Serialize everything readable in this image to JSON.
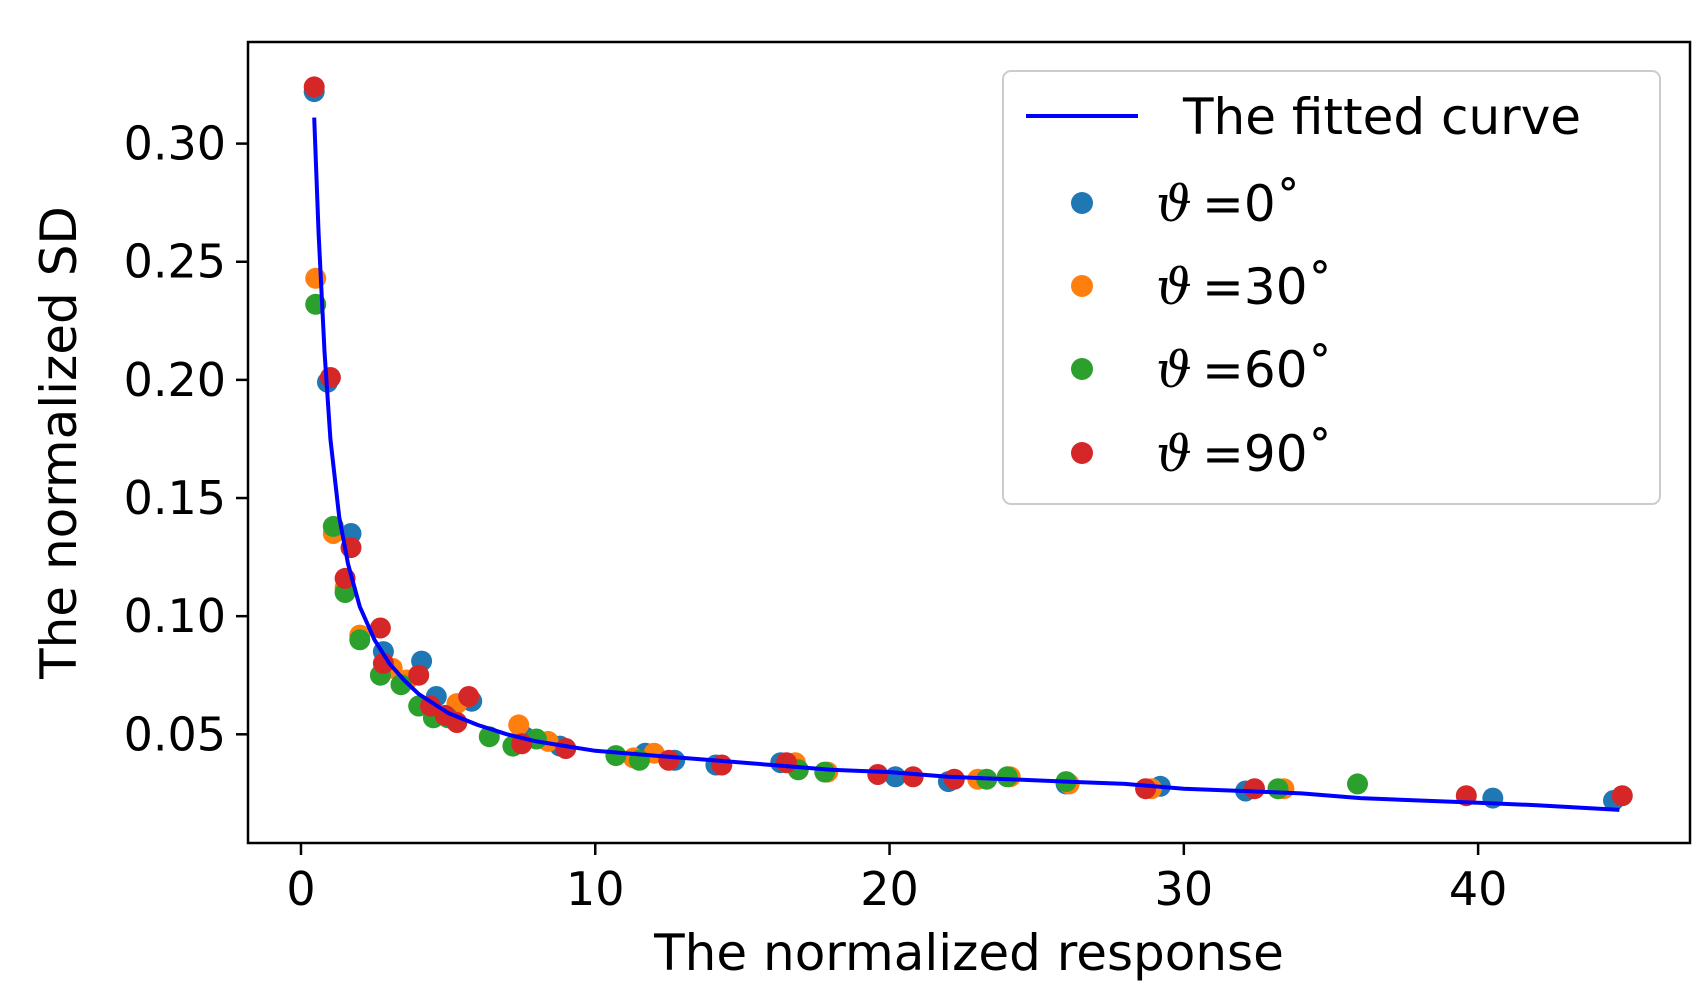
{
  "chart_data": {
    "type": "scatter",
    "title": "",
    "xlabel": "The normalized response",
    "ylabel": "The normalized SD",
    "xlim": [
      -1.8,
      47.2
    ],
    "ylim": [
      0.004,
      0.343
    ],
    "xticks": [
      0,
      10,
      20,
      30,
      40
    ],
    "xtick_labels": [
      "0",
      "10",
      "20",
      "30",
      "40"
    ],
    "yticks": [
      0.05,
      0.1,
      0.15,
      0.2,
      0.25,
      0.3
    ],
    "ytick_labels": [
      "0.05",
      "0.10",
      "0.15",
      "0.20",
      "0.25",
      "0.30"
    ],
    "grid": false,
    "legend_position": "top-right",
    "fitted_curve": {
      "name": "The fitted curve",
      "color": "#0000ff",
      "x": [
        0.45,
        0.6,
        0.8,
        1.0,
        1.3,
        1.6,
        2.0,
        2.5,
        3.0,
        3.5,
        4.0,
        5.0,
        6.0,
        7.0,
        8.0,
        9.0,
        10,
        12,
        14,
        16,
        18,
        20,
        22,
        24,
        26,
        28,
        30,
        32,
        34,
        36,
        38,
        40,
        42,
        44.8
      ],
      "y": [
        0.311,
        0.262,
        0.212,
        0.175,
        0.142,
        0.122,
        0.104,
        0.09,
        0.08,
        0.073,
        0.067,
        0.059,
        0.054,
        0.05,
        0.047,
        0.045,
        0.043,
        0.041,
        0.039,
        0.037,
        0.035,
        0.034,
        0.032,
        0.031,
        0.03,
        0.029,
        0.027,
        0.026,
        0.025,
        0.023,
        0.022,
        0.021,
        0.02,
        0.018
      ]
    },
    "series": [
      {
        "name": "ϑ =0˚",
        "label_prefix": "ϑ",
        "label_value": "=0˚",
        "color": "#1f77b4",
        "x": [
          0.45,
          0.9,
          1.7,
          2.8,
          4.1,
          4.6,
          5.8,
          7.6,
          8.8,
          11.7,
          12.7,
          14.1,
          16.3,
          20.2,
          22.0,
          26.0,
          29.2,
          32.1,
          40.5,
          44.6
        ],
        "y": [
          0.322,
          0.199,
          0.135,
          0.085,
          0.081,
          0.066,
          0.064,
          0.049,
          0.045,
          0.042,
          0.039,
          0.037,
          0.038,
          0.032,
          0.03,
          0.029,
          0.028,
          0.026,
          0.023,
          0.022
        ]
      },
      {
        "name": "ϑ =30˚",
        "label_prefix": "ϑ",
        "label_value": "=30˚",
        "color": "#ff7f0e",
        "x": [
          0.5,
          1.1,
          1.5,
          2.0,
          3.1,
          3.6,
          5.3,
          7.4,
          8.4,
          11.3,
          12.0,
          16.8,
          17.9,
          23.0,
          24.1,
          26.1,
          28.9,
          33.4
        ],
        "y": [
          0.243,
          0.135,
          0.112,
          0.092,
          0.078,
          0.073,
          0.063,
          0.054,
          0.047,
          0.04,
          0.042,
          0.038,
          0.034,
          0.031,
          0.032,
          0.029,
          0.027,
          0.027
        ]
      },
      {
        "name": "ϑ =60˚",
        "label_prefix": "ϑ",
        "label_value": "=60˚",
        "color": "#2ca02c",
        "x": [
          0.5,
          1.1,
          1.5,
          2.0,
          2.7,
          3.4,
          4.0,
          4.5,
          5.0,
          6.4,
          7.2,
          8.0,
          10.7,
          11.5,
          16.9,
          17.8,
          23.3,
          24.0,
          26.0,
          33.2,
          35.9
        ],
        "y": [
          0.232,
          0.138,
          0.11,
          0.09,
          0.075,
          0.071,
          0.062,
          0.057,
          0.057,
          0.049,
          0.045,
          0.048,
          0.041,
          0.039,
          0.035,
          0.034,
          0.031,
          0.032,
          0.03,
          0.027,
          0.029
        ]
      },
      {
        "name": "ϑ =90˚",
        "label_prefix": "ϑ",
        "label_value": "=90˚",
        "color": "#d62728",
        "x": [
          0.45,
          1.0,
          1.5,
          1.7,
          2.7,
          2.8,
          4.0,
          4.4,
          4.9,
          5.3,
          5.7,
          7.5,
          9.0,
          12.5,
          14.3,
          16.5,
          19.6,
          20.8,
          22.2,
          28.7,
          32.4,
          39.6,
          44.9
        ],
        "y": [
          0.324,
          0.201,
          0.116,
          0.129,
          0.095,
          0.08,
          0.075,
          0.062,
          0.058,
          0.055,
          0.066,
          0.046,
          0.044,
          0.039,
          0.037,
          0.038,
          0.033,
          0.032,
          0.031,
          0.027,
          0.027,
          0.024,
          0.024
        ]
      }
    ]
  }
}
